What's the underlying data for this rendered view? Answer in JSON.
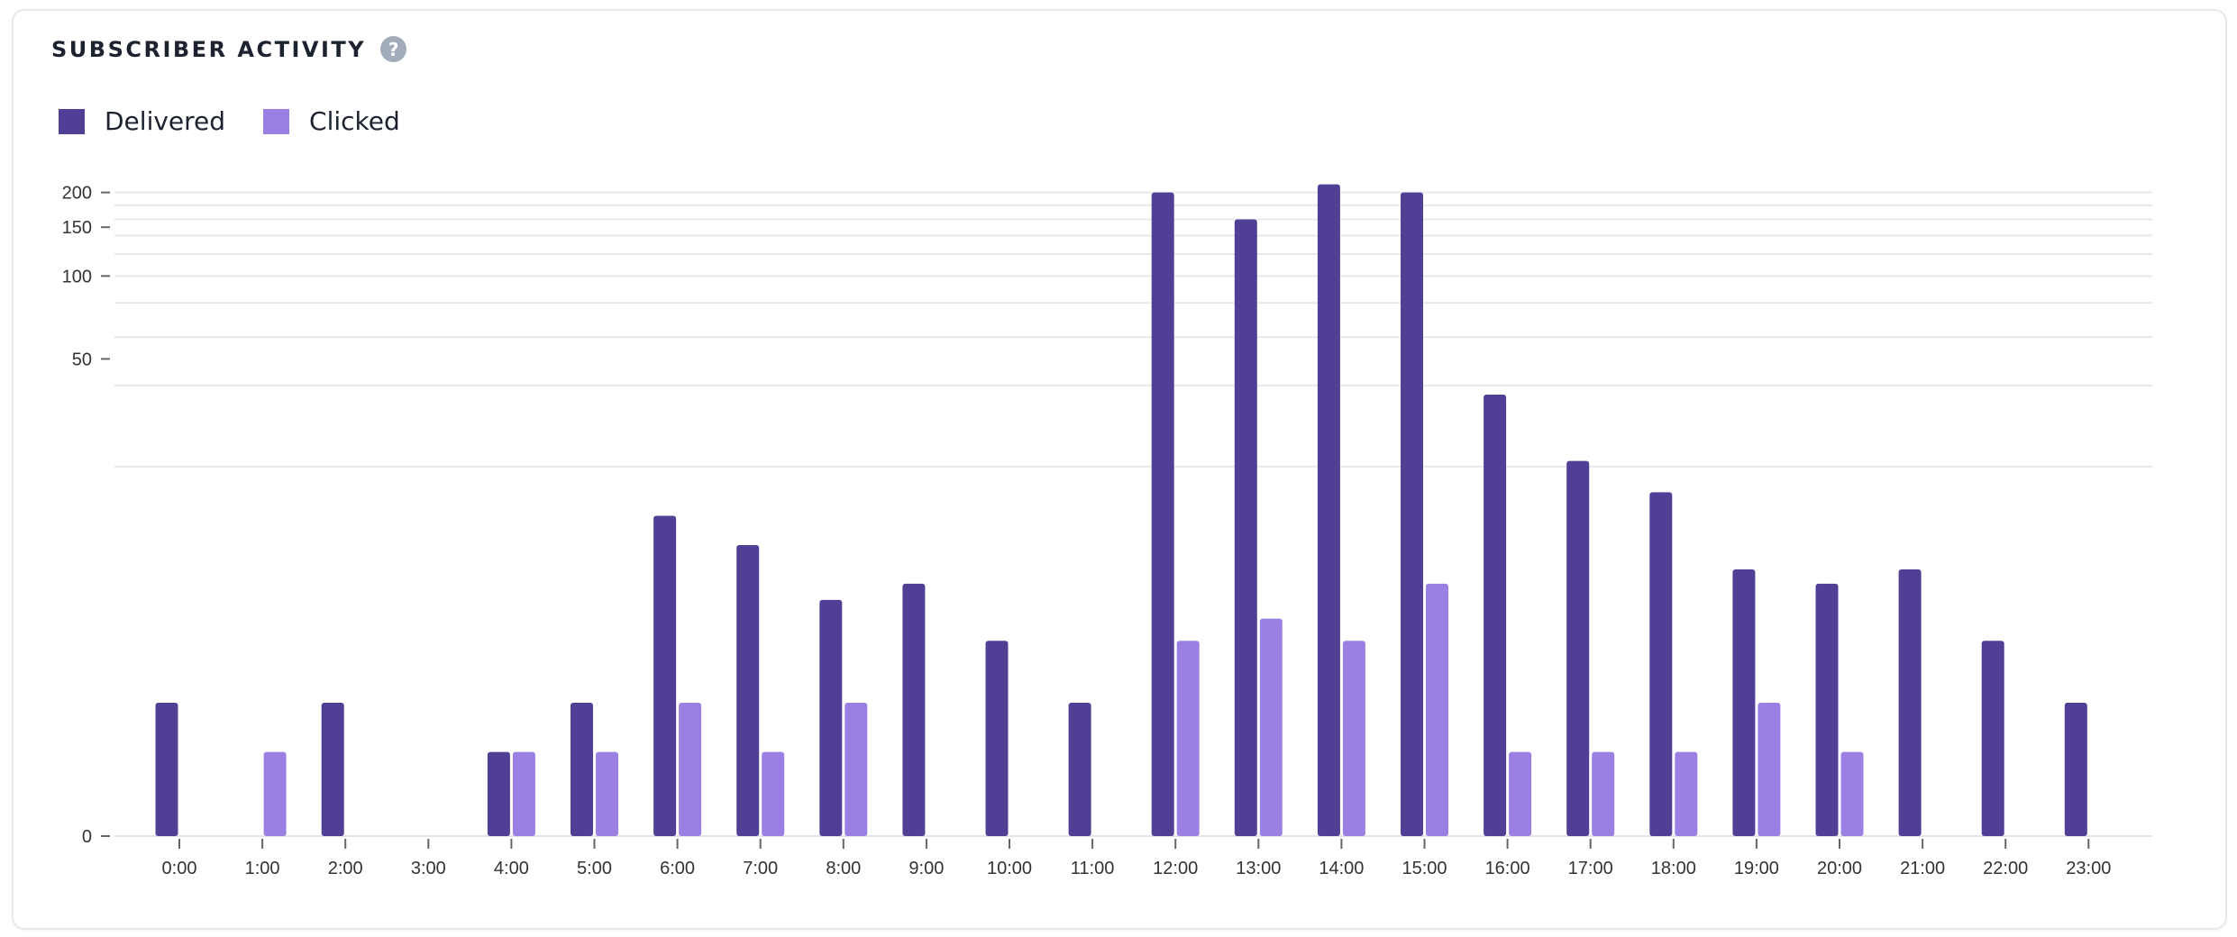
{
  "chart_data": {
    "type": "bar",
    "title": "SUBSCRIBER ACTIVITY",
    "help_icon": "question-circle-icon",
    "help_glyph": "?",
    "xlabel": "",
    "ylabel": "",
    "scale": "symlog",
    "ylim": [
      0,
      214
    ],
    "yticks": [
      0,
      50,
      100,
      150,
      200
    ],
    "ytick_labels": [
      "0",
      "50",
      "100",
      "150",
      "200"
    ],
    "gridlines": [
      20,
      40,
      60,
      80,
      100,
      120,
      140,
      160,
      180,
      200
    ],
    "grid": true,
    "legend_position": "top-left",
    "categories": [
      "0:00",
      "1:00",
      "2:00",
      "3:00",
      "4:00",
      "5:00",
      "6:00",
      "7:00",
      "8:00",
      "9:00",
      "10:00",
      "11:00",
      "12:00",
      "13:00",
      "14:00",
      "15:00",
      "16:00",
      "17:00",
      "18:00",
      "19:00",
      "20:00",
      "21:00",
      "22:00",
      "23:00"
    ],
    "series": [
      {
        "name": "Delivered",
        "color": "#513f96",
        "values": [
          2,
          0,
          2,
          0,
          1,
          2,
          13,
          10,
          6,
          7,
          4,
          2,
          200,
          160,
          214,
          200,
          37,
          21,
          16,
          8,
          7,
          8,
          4,
          2
        ]
      },
      {
        "name": "Clicked",
        "color": "#9b80e3",
        "values": [
          0,
          1,
          0,
          0,
          1,
          1,
          2,
          1,
          2,
          0,
          0,
          0,
          4,
          5,
          4,
          7,
          1,
          1,
          1,
          2,
          1,
          0,
          0,
          0
        ]
      }
    ]
  }
}
